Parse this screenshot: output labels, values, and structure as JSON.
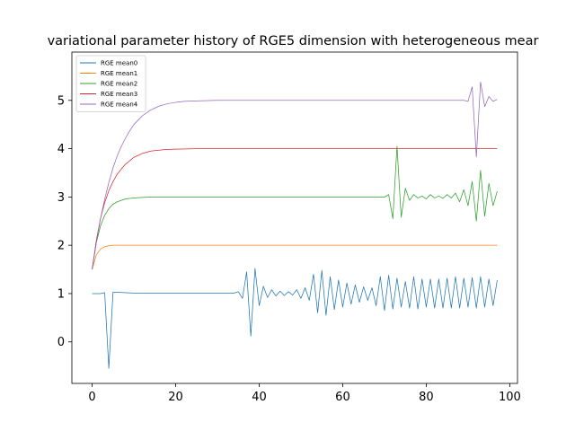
{
  "chart_data": {
    "type": "line",
    "title": "variational parameter history of RGE5 dimension with heterogeneous mear",
    "xlabel": "",
    "ylabel": "",
    "xlim": [
      -4.85,
      101.85
    ],
    "ylim": [
      -0.86,
      6.0
    ],
    "xticks": [
      0,
      20,
      40,
      60,
      80,
      100
    ],
    "yticks": [
      0,
      1,
      2,
      3,
      4,
      5
    ],
    "grid": false,
    "legend_position": "top-left",
    "series": [
      {
        "name": "RGE mean0",
        "color": "#1f77b4",
        "x": [
          0,
          2,
          3,
          4,
          5,
          10,
          20,
          30,
          34,
          35,
          36,
          37,
          38,
          39,
          40,
          41,
          42,
          43,
          44,
          45,
          46,
          47,
          48,
          49,
          50,
          51,
          52,
          53,
          54,
          55,
          56,
          57,
          58,
          59,
          60,
          61,
          62,
          63,
          64,
          65,
          66,
          67,
          68,
          69,
          70,
          71,
          72,
          73,
          74,
          75,
          76,
          77,
          78,
          79,
          80,
          81,
          82,
          83,
          84,
          85,
          86,
          87,
          88,
          89,
          90,
          91,
          92,
          93,
          94,
          95,
          96,
          97
        ],
        "y": [
          1.0,
          1.0,
          1.02,
          -0.55,
          1.03,
          1.01,
          1.01,
          1.01,
          1.01,
          1.04,
          0.9,
          1.45,
          0.12,
          1.52,
          0.75,
          1.15,
          0.92,
          1.08,
          0.95,
          1.05,
          0.96,
          1.04,
          0.97,
          1.08,
          0.9,
          1.12,
          0.86,
          1.4,
          0.6,
          1.48,
          0.55,
          1.35,
          0.67,
          1.28,
          0.72,
          1.22,
          0.78,
          1.18,
          0.82,
          1.14,
          0.86,
          1.12,
          0.75,
          1.35,
          0.65,
          1.38,
          0.68,
          1.32,
          0.72,
          1.25,
          0.7,
          1.35,
          0.68,
          1.3,
          0.72,
          1.3,
          0.7,
          1.3,
          0.7,
          1.32,
          0.7,
          1.35,
          0.7,
          1.32,
          0.72,
          1.33,
          0.7,
          1.35,
          0.72,
          1.3,
          0.75,
          1.28
        ]
      },
      {
        "name": "RGE mean1",
        "color": "#ff7f0e",
        "x": [
          0,
          1,
          2,
          3,
          4,
          5,
          6,
          8,
          10,
          20,
          40,
          60,
          80,
          97
        ],
        "y": [
          1.5,
          1.8,
          1.92,
          1.97,
          1.99,
          2.0,
          2.0,
          2.0,
          2.0,
          2.0,
          2.0,
          2.0,
          2.0,
          2.0
        ]
      },
      {
        "name": "RGE mean2",
        "color": "#2ca02c",
        "x": [
          0,
          1,
          2,
          3,
          4,
          5,
          6,
          8,
          10,
          12,
          15,
          20,
          30,
          40,
          50,
          60,
          70,
          71,
          72,
          73,
          74,
          75,
          76,
          77,
          78,
          79,
          80,
          81,
          82,
          83,
          84,
          85,
          86,
          87,
          88,
          89,
          90,
          91,
          92,
          93,
          94,
          95,
          96,
          97
        ],
        "y": [
          1.5,
          2.05,
          2.4,
          2.62,
          2.76,
          2.85,
          2.9,
          2.96,
          2.98,
          2.99,
          3.0,
          3.0,
          3.0,
          3.0,
          3.0,
          3.0,
          3.0,
          3.05,
          2.55,
          4.05,
          2.58,
          3.18,
          2.93,
          3.05,
          2.98,
          3.02,
          2.96,
          3.05,
          2.98,
          3.02,
          2.97,
          3.05,
          2.98,
          3.08,
          2.9,
          3.15,
          2.82,
          3.32,
          2.5,
          3.55,
          2.6,
          3.28,
          2.82,
          3.12
        ]
      },
      {
        "name": "RGE mean3",
        "color": "#d62728",
        "x": [
          0,
          1,
          2,
          3,
          4,
          5,
          6,
          7,
          8,
          10,
          12,
          14,
          16,
          18,
          20,
          25,
          30,
          40,
          60,
          80,
          97
        ],
        "y": [
          1.5,
          2.1,
          2.55,
          2.88,
          3.13,
          3.32,
          3.47,
          3.58,
          3.68,
          3.82,
          3.9,
          3.95,
          3.97,
          3.985,
          3.99,
          4.0,
          4.0,
          4.0,
          4.0,
          4.0,
          4.0
        ]
      },
      {
        "name": "RGE mean4",
        "color": "#9467bd",
        "x": [
          0,
          1,
          2,
          3,
          4,
          5,
          6,
          7,
          8,
          9,
          10,
          12,
          14,
          16,
          18,
          20,
          22,
          25,
          30,
          40,
          60,
          80,
          89,
          90,
          91,
          92,
          93,
          94,
          95,
          96,
          97
        ],
        "y": [
          1.5,
          2.05,
          2.55,
          2.95,
          3.3,
          3.6,
          3.85,
          4.05,
          4.22,
          4.37,
          4.5,
          4.68,
          4.8,
          4.88,
          4.93,
          4.96,
          4.98,
          4.99,
          5.0,
          5.0,
          5.0,
          5.0,
          5.0,
          4.98,
          5.28,
          3.83,
          5.38,
          4.87,
          5.08,
          4.98,
          5.02
        ]
      }
    ]
  }
}
